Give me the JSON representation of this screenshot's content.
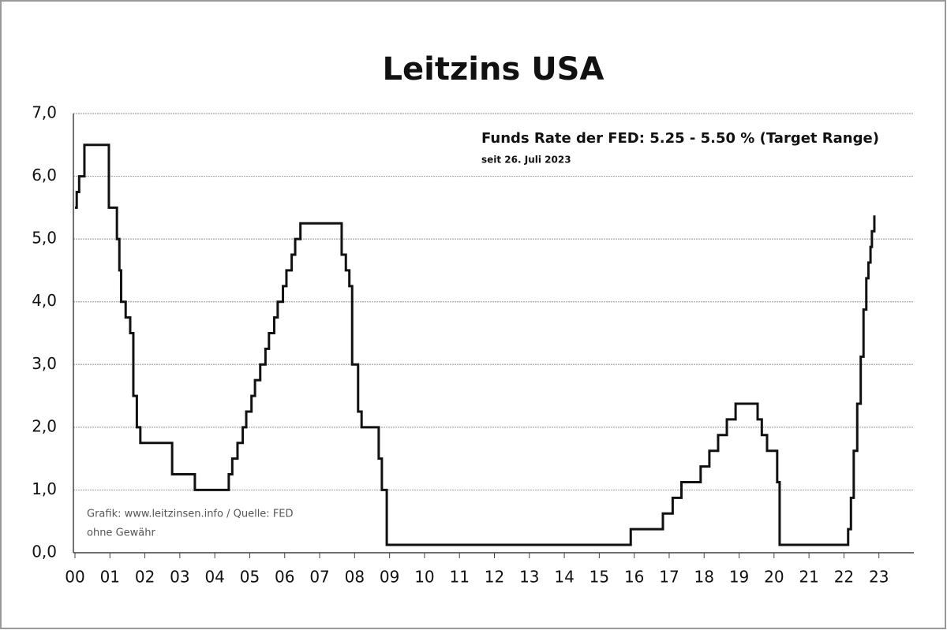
{
  "chart_data": {
    "type": "line",
    "title": "Leitzins USA",
    "annotations": [
      "Funds Rate der FED: 5.25 -  5.50 % (Target Range)",
      "seit 26. Juli 2023",
      "Grafik: www.leitzinsen.info / Quelle: FED",
      "ohne Gewähr"
    ],
    "color": "#111111",
    "x": [
      0,
      0.05,
      0.05,
      0.12,
      0.12,
      0.27,
      0.27,
      0.97,
      0.97,
      1.2,
      1.2,
      1.27,
      1.27,
      1.32,
      1.32,
      1.45,
      1.45,
      1.58,
      1.58,
      1.67,
      1.67,
      1.77,
      1.77,
      1.87,
      1.87,
      2.78,
      2.78,
      3.43,
      3.43,
      4.4,
      4.4,
      4.5,
      4.5,
      4.65,
      4.65,
      4.8,
      4.8,
      4.9,
      4.9,
      5.05,
      5.05,
      5.15,
      5.15,
      5.3,
      5.3,
      5.45,
      5.45,
      5.55,
      5.55,
      5.7,
      5.7,
      5.8,
      5.8,
      5.95,
      5.95,
      6.05,
      6.05,
      6.2,
      6.2,
      6.3,
      6.3,
      6.45,
      6.45,
      7.63,
      7.63,
      7.75,
      7.75,
      7.85,
      7.85,
      7.93,
      7.93,
      8.1,
      8.1,
      8.2,
      8.2,
      8.69,
      8.69,
      8.78,
      8.78,
      8.92,
      8.92,
      15.9,
      15.9,
      16.82,
      16.82,
      17.1,
      17.1,
      17.35,
      17.35,
      17.9,
      17.9,
      18.15,
      18.15,
      18.4,
      18.4,
      18.65,
      18.65,
      18.9,
      18.9,
      19.53,
      19.53,
      19.65,
      19.65,
      19.8,
      19.8,
      20.09,
      20.09,
      20.16,
      20.16,
      22.12,
      22.12,
      22.2,
      22.2,
      22.28,
      22.28,
      22.38,
      22.38,
      22.48,
      22.48,
      22.56,
      22.56,
      22.64,
      22.64,
      22.7,
      22.7,
      22.76,
      22.76,
      22.8,
      22.8,
      22.87,
      22.87
    ],
    "values": [
      5.5,
      5.5,
      5.75,
      5.75,
      6.0,
      6.0,
      6.5,
      6.5,
      5.5,
      5.5,
      5.0,
      5.0,
      4.5,
      4.5,
      4.0,
      4.0,
      3.75,
      3.75,
      3.5,
      3.5,
      2.5,
      2.5,
      2.0,
      2.0,
      1.75,
      1.75,
      1.25,
      1.25,
      1.0,
      1.0,
      1.25,
      1.25,
      1.5,
      1.5,
      1.75,
      1.75,
      2.0,
      2.0,
      2.25,
      2.25,
      2.5,
      2.5,
      2.75,
      2.75,
      3.0,
      3.0,
      3.25,
      3.25,
      3.5,
      3.5,
      3.75,
      3.75,
      4.0,
      4.0,
      4.25,
      4.25,
      4.5,
      4.5,
      4.75,
      4.75,
      5.0,
      5.0,
      5.25,
      5.25,
      4.75,
      4.75,
      4.5,
      4.5,
      4.25,
      4.25,
      3.0,
      3.0,
      2.25,
      2.25,
      2.0,
      2.0,
      1.5,
      1.5,
      1.0,
      1.0,
      0.125,
      0.125,
      0.375,
      0.375,
      0.625,
      0.625,
      0.875,
      0.875,
      1.125,
      1.125,
      1.375,
      1.375,
      1.625,
      1.625,
      1.875,
      1.875,
      2.125,
      2.125,
      2.375,
      2.375,
      2.125,
      2.125,
      1.875,
      1.875,
      1.625,
      1.625,
      1.125,
      1.125,
      0.125,
      0.125,
      0.375,
      0.375,
      0.875,
      0.875,
      1.625,
      1.625,
      2.375,
      2.375,
      3.125,
      3.125,
      3.875,
      3.875,
      4.375,
      4.375,
      4.625,
      4.625,
      4.875,
      4.875,
      5.125,
      5.125,
      5.375
    ],
    "xlim": [
      0,
      24
    ],
    "ylim": [
      0,
      7
    ],
    "xticks": [
      {
        "value": 0,
        "label": "00"
      },
      {
        "value": 1,
        "label": "01"
      },
      {
        "value": 2,
        "label": "02"
      },
      {
        "value": 3,
        "label": "03"
      },
      {
        "value": 4,
        "label": "04"
      },
      {
        "value": 5,
        "label": "05"
      },
      {
        "value": 6,
        "label": "06"
      },
      {
        "value": 7,
        "label": "07"
      },
      {
        "value": 8,
        "label": "08"
      },
      {
        "value": 9,
        "label": "09"
      },
      10,
      11,
      12,
      13,
      14,
      15,
      16,
      17,
      18,
      19,
      20,
      21,
      22,
      23
    ],
    "yticks": [
      {
        "value": 0,
        "label": "0,0"
      },
      {
        "value": 1,
        "label": "1,0"
      },
      {
        "value": 2,
        "label": "2,0"
      },
      {
        "value": 3,
        "label": "3,0"
      },
      {
        "value": 4,
        "label": "4,0"
      },
      {
        "value": 5,
        "label": "5,0"
      },
      {
        "value": 6,
        "label": "6,0"
      },
      {
        "value": 7,
        "label": "7,0"
      }
    ],
    "grid": true
  }
}
